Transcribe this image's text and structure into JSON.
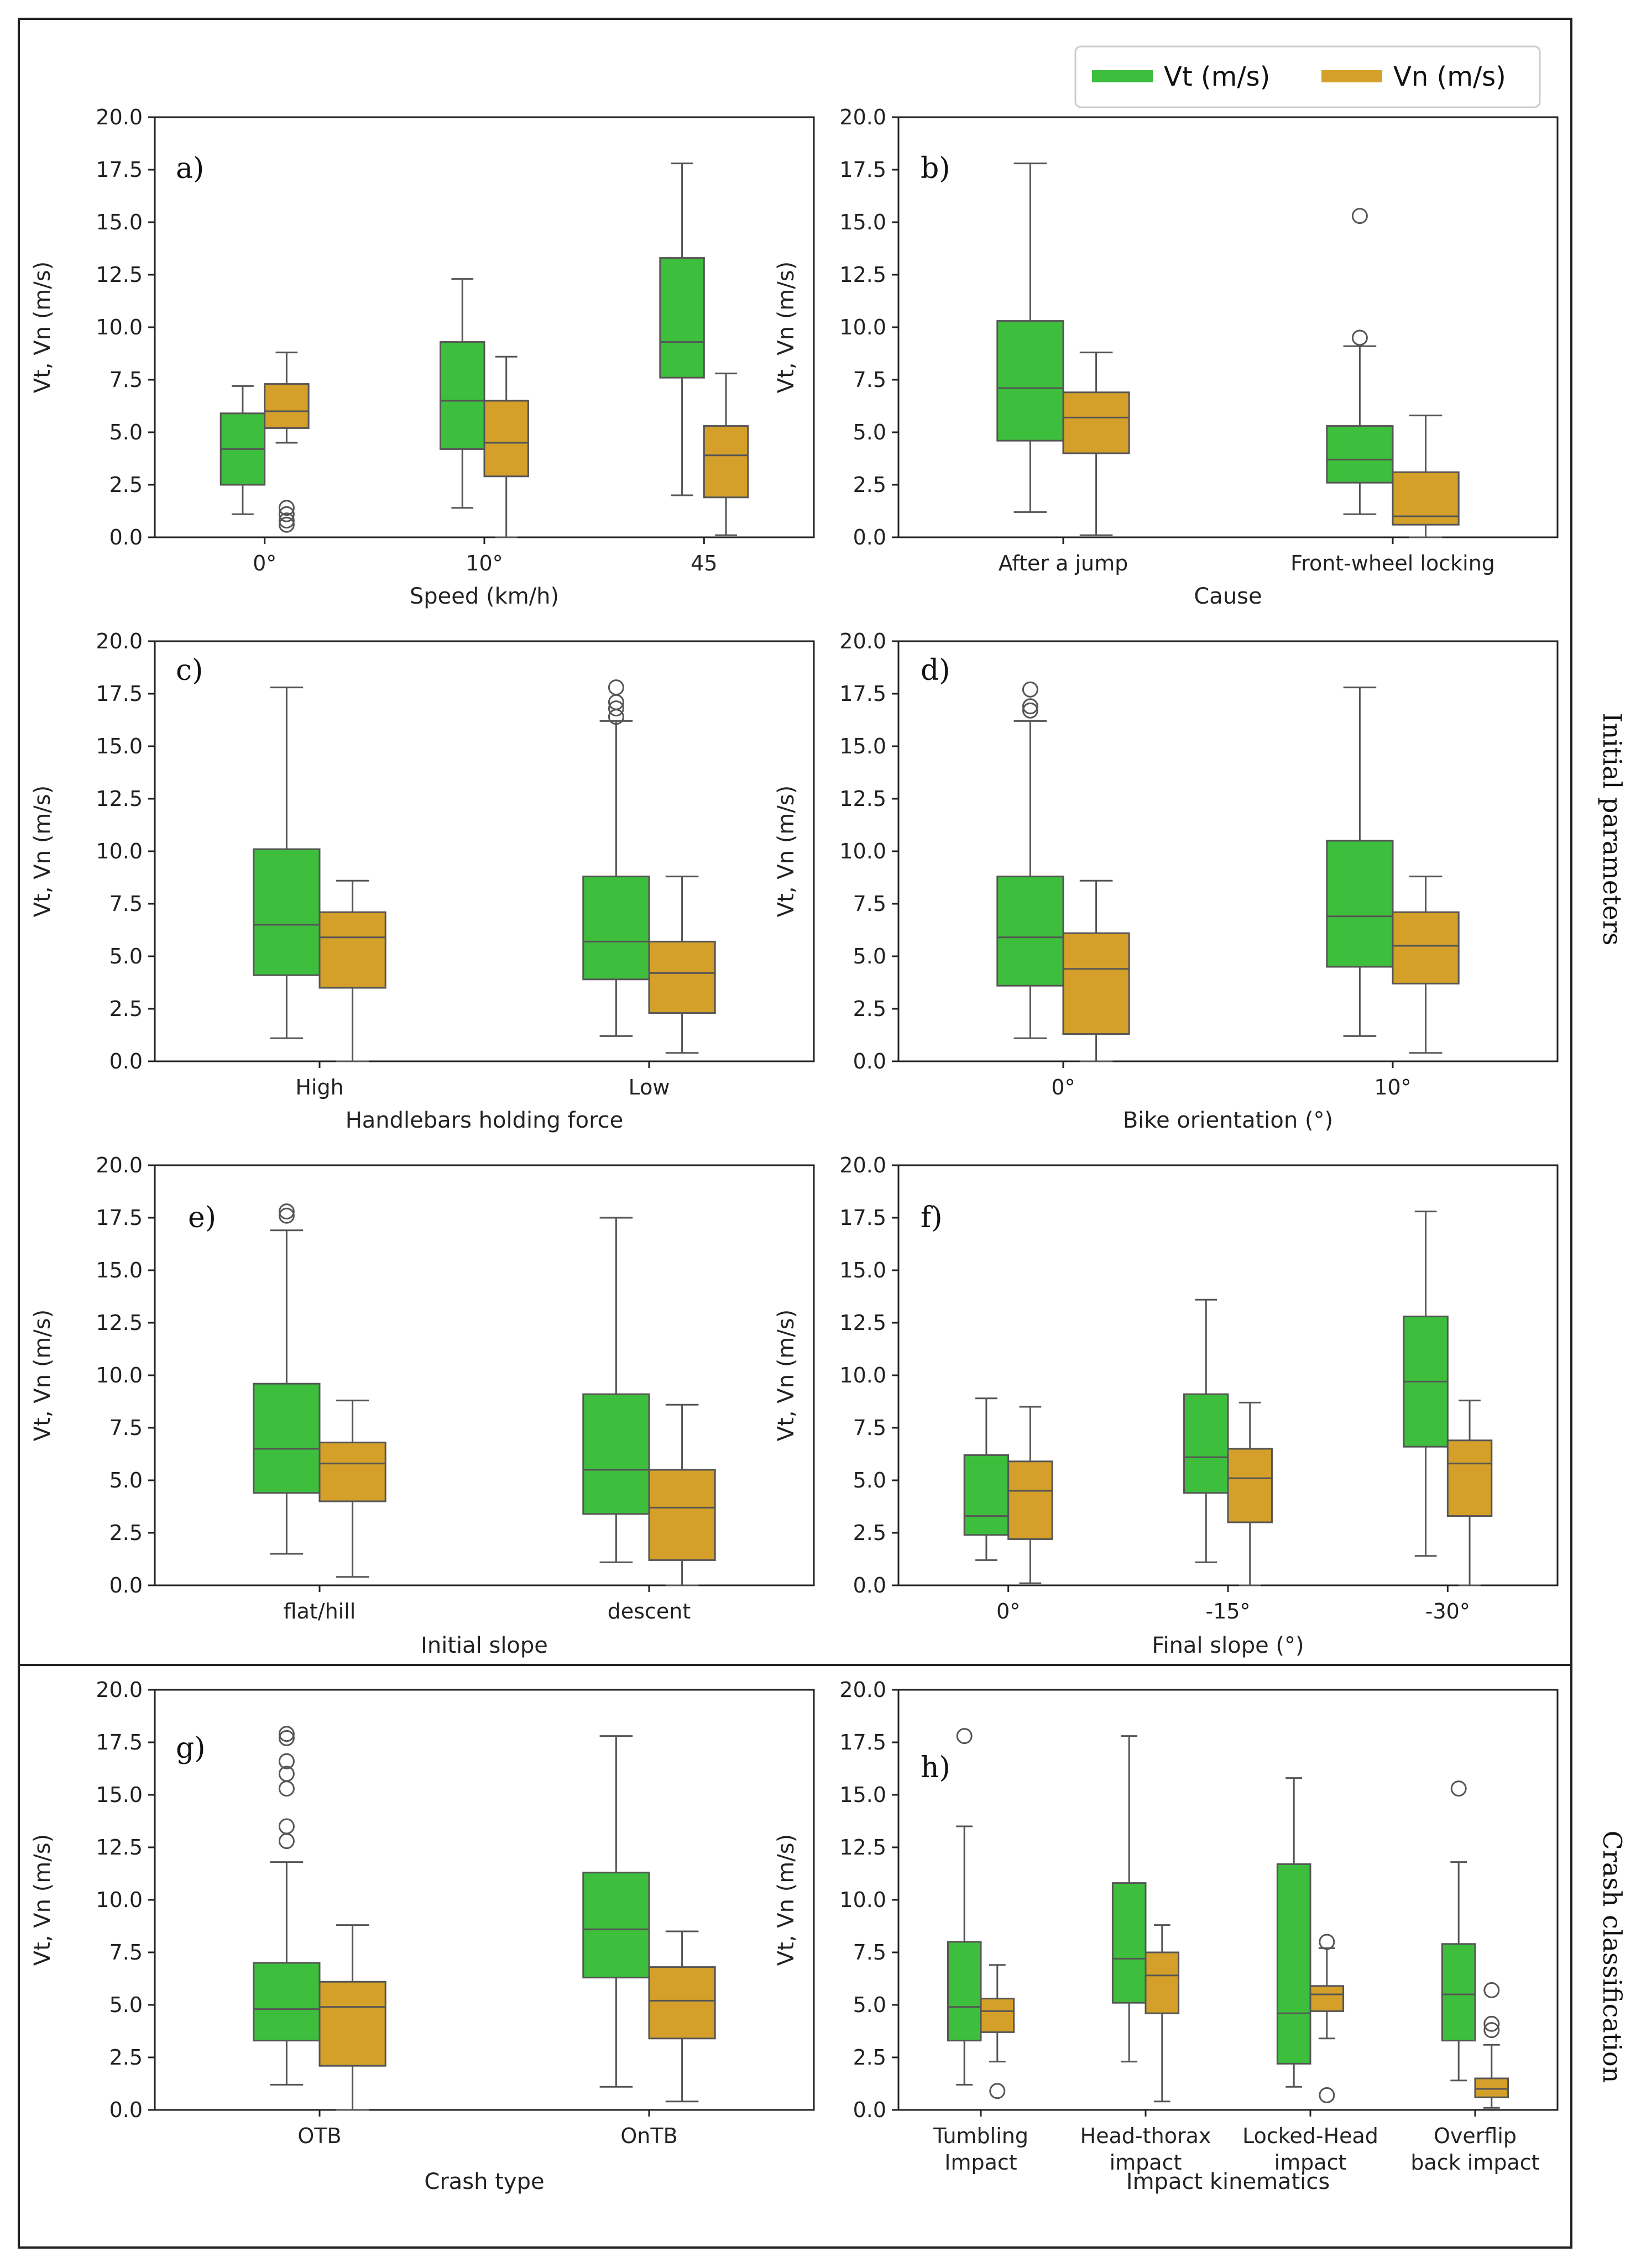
{
  "colors": {
    "vt": "#3dbf3d",
    "vn": "#d4a02a",
    "line": "#555555",
    "frame": "#222222"
  },
  "legend": {
    "vt": "Vt (m/s)",
    "vn": "Vn (m/s)",
    "position": "top-right"
  },
  "sections": {
    "initial": "Initial parameters",
    "crash": "Crash classification"
  },
  "chart_data": [
    {
      "type": "box",
      "panel": "a)",
      "xlabel": "Speed (km/h)",
      "ylabel": "Vt, Vn (m/s)",
      "ylim": [
        0,
        20
      ],
      "yticks": [
        "0.0",
        "2.5",
        "5.0",
        "7.5",
        "10.0",
        "12.5",
        "15.0",
        "17.5",
        "20.0"
      ],
      "categories": [
        "0°",
        "10°",
        "45"
      ],
      "series": [
        {
          "name": "Vt (m/s)",
          "boxes": [
            {
              "wl": 1.1,
              "q1": 2.5,
              "med": 4.2,
              "q3": 5.9,
              "wh": 7.2,
              "out": []
            },
            {
              "wl": 1.4,
              "q1": 4.2,
              "med": 6.5,
              "q3": 9.3,
              "wh": 12.3,
              "out": []
            },
            {
              "wl": 2.0,
              "q1": 7.6,
              "med": 9.3,
              "q3": 13.3,
              "wh": 17.8,
              "out": []
            }
          ]
        },
        {
          "name": "Vn (m/s)",
          "boxes": [
            {
              "wl": 4.5,
              "q1": 5.2,
              "med": 6.0,
              "q3": 7.3,
              "wh": 8.8,
              "out": [
                0.6,
                0.8,
                1.1,
                1.4
              ]
            },
            {
              "wl": 0.0,
              "q1": 2.9,
              "med": 4.5,
              "q3": 6.5,
              "wh": 8.6,
              "out": []
            },
            {
              "wl": 0.1,
              "q1": 1.9,
              "med": 3.9,
              "q3": 5.3,
              "wh": 7.8,
              "out": []
            }
          ]
        }
      ]
    },
    {
      "type": "box",
      "panel": "b)",
      "xlabel": "Cause",
      "ylabel": "Vt, Vn (m/s)",
      "ylim": [
        0,
        20
      ],
      "yticks": [
        "0.0",
        "2.5",
        "5.0",
        "7.5",
        "10.0",
        "12.5",
        "15.0",
        "17.5",
        "20.0"
      ],
      "categories": [
        "After a jump",
        "Front-wheel locking"
      ],
      "series": [
        {
          "name": "Vt (m/s)",
          "boxes": [
            {
              "wl": 1.2,
              "q1": 4.6,
              "med": 7.1,
              "q3": 10.3,
              "wh": 17.8,
              "out": []
            },
            {
              "wl": 1.1,
              "q1": 2.6,
              "med": 3.7,
              "q3": 5.3,
              "wh": 9.1,
              "out": [
                9.5,
                15.3
              ]
            }
          ]
        },
        {
          "name": "Vn (m/s)",
          "boxes": [
            {
              "wl": 0.1,
              "q1": 4.0,
              "med": 5.7,
              "q3": 6.9,
              "wh": 8.8,
              "out": []
            },
            {
              "wl": 0.0,
              "q1": 0.6,
              "med": 1.0,
              "q3": 3.1,
              "wh": 5.8,
              "out": []
            }
          ]
        }
      ]
    },
    {
      "type": "box",
      "panel": "c)",
      "xlabel": "Handlebars holding force",
      "ylabel": "Vt, Vn (m/s)",
      "ylim": [
        0,
        20
      ],
      "yticks": [
        "0.0",
        "2.5",
        "5.0",
        "7.5",
        "10.0",
        "12.5",
        "15.0",
        "17.5",
        "20.0"
      ],
      "categories": [
        "High",
        "Low"
      ],
      "series": [
        {
          "name": "Vt (m/s)",
          "boxes": [
            {
              "wl": 1.1,
              "q1": 4.1,
              "med": 6.5,
              "q3": 10.1,
              "wh": 17.8,
              "out": []
            },
            {
              "wl": 1.2,
              "q1": 3.9,
              "med": 5.7,
              "q3": 8.8,
              "wh": 16.2,
              "out": [
                16.4,
                16.8,
                17.1,
                17.8
              ]
            }
          ]
        },
        {
          "name": "Vn (m/s)",
          "boxes": [
            {
              "wl": 0.0,
              "q1": 3.5,
              "med": 5.9,
              "q3": 7.1,
              "wh": 8.6,
              "out": []
            },
            {
              "wl": 0.4,
              "q1": 2.3,
              "med": 4.2,
              "q3": 5.7,
              "wh": 8.8,
              "out": []
            }
          ]
        }
      ]
    },
    {
      "type": "box",
      "panel": "d)",
      "xlabel": "Bike orientation (°)",
      "ylabel": "Vt, Vn (m/s)",
      "ylim": [
        0,
        20
      ],
      "yticks": [
        "0.0",
        "2.5",
        "5.0",
        "7.5",
        "10.0",
        "12.5",
        "15.0",
        "17.5",
        "20.0"
      ],
      "categories": [
        "0°",
        "10°"
      ],
      "series": [
        {
          "name": "Vt (m/s)",
          "boxes": [
            {
              "wl": 1.1,
              "q1": 3.6,
              "med": 5.9,
              "q3": 8.8,
              "wh": 16.2,
              "out": [
                16.7,
                16.9,
                17.7
              ]
            },
            {
              "wl": 1.2,
              "q1": 4.5,
              "med": 6.9,
              "q3": 10.5,
              "wh": 17.8,
              "out": []
            }
          ]
        },
        {
          "name": "Vn (m/s)",
          "boxes": [
            {
              "wl": 0.0,
              "q1": 1.3,
              "med": 4.4,
              "q3": 6.1,
              "wh": 8.6,
              "out": []
            },
            {
              "wl": 0.4,
              "q1": 3.7,
              "med": 5.5,
              "q3": 7.1,
              "wh": 8.8,
              "out": []
            }
          ]
        }
      ]
    },
    {
      "type": "box",
      "panel": "e)",
      "xlabel": "Initial slope",
      "ylabel": "Vt, Vn (m/s)",
      "ylim": [
        0,
        20
      ],
      "yticks": [
        "0.0",
        "2.5",
        "5.0",
        "7.5",
        "10.0",
        "12.5",
        "15.0",
        "17.5",
        "20.0"
      ],
      "categories": [
        "flat/hill",
        "descent"
      ],
      "series": [
        {
          "name": "Vt (m/s)",
          "boxes": [
            {
              "wl": 1.5,
              "q1": 4.4,
              "med": 6.5,
              "q3": 9.6,
              "wh": 16.9,
              "out": [
                17.6,
                17.8
              ]
            },
            {
              "wl": 1.1,
              "q1": 3.4,
              "med": 5.5,
              "q3": 9.1,
              "wh": 17.5,
              "out": []
            }
          ]
        },
        {
          "name": "Vn (m/s)",
          "boxes": [
            {
              "wl": 0.4,
              "q1": 4.0,
              "med": 5.8,
              "q3": 6.8,
              "wh": 8.8,
              "out": []
            },
            {
              "wl": 0.0,
              "q1": 1.2,
              "med": 3.7,
              "q3": 5.5,
              "wh": 8.6,
              "out": []
            }
          ]
        }
      ]
    },
    {
      "type": "box",
      "panel": "f)",
      "xlabel": "Final slope (°)",
      "ylabel": "Vt, Vn (m/s)",
      "ylim": [
        0,
        20
      ],
      "yticks": [
        "0.0",
        "2.5",
        "5.0",
        "7.5",
        "10.0",
        "12.5",
        "15.0",
        "17.5",
        "20.0"
      ],
      "categories": [
        "0°",
        "-15°",
        "-30°"
      ],
      "series": [
        {
          "name": "Vt (m/s)",
          "boxes": [
            {
              "wl": 1.2,
              "q1": 2.4,
              "med": 3.3,
              "q3": 6.2,
              "wh": 8.9,
              "out": []
            },
            {
              "wl": 1.1,
              "q1": 4.4,
              "med": 6.1,
              "q3": 9.1,
              "wh": 13.6,
              "out": []
            },
            {
              "wl": 1.4,
              "q1": 6.6,
              "med": 9.7,
              "q3": 12.8,
              "wh": 17.8,
              "out": []
            }
          ]
        },
        {
          "name": "Vn (m/s)",
          "boxes": [
            {
              "wl": 0.1,
              "q1": 2.2,
              "med": 4.5,
              "q3": 5.9,
              "wh": 8.5,
              "out": []
            },
            {
              "wl": 0.0,
              "q1": 3.0,
              "med": 5.1,
              "q3": 6.5,
              "wh": 8.7,
              "out": []
            },
            {
              "wl": 0.0,
              "q1": 3.3,
              "med": 5.8,
              "q3": 6.9,
              "wh": 8.8,
              "out": []
            }
          ]
        }
      ]
    },
    {
      "type": "box",
      "panel": "g)",
      "xlabel": "Crash type",
      "ylabel": "Vt, Vn (m/s)",
      "ylim": [
        0,
        20
      ],
      "yticks": [
        "0.0",
        "2.5",
        "5.0",
        "7.5",
        "10.0",
        "12.5",
        "15.0",
        "17.5",
        "20.0"
      ],
      "categories": [
        "OTB",
        "OnTB"
      ],
      "series": [
        {
          "name": "Vt (m/s)",
          "boxes": [
            {
              "wl": 1.2,
              "q1": 3.3,
              "med": 4.8,
              "q3": 7.0,
              "wh": 11.8,
              "out": [
                12.8,
                13.5,
                15.3,
                16.0,
                16.6,
                17.7,
                17.9
              ]
            },
            {
              "wl": 1.1,
              "q1": 6.3,
              "med": 8.6,
              "q3": 11.3,
              "wh": 17.8,
              "out": []
            }
          ]
        },
        {
          "name": "Vn (m/s)",
          "boxes": [
            {
              "wl": 0.0,
              "q1": 2.1,
              "med": 4.9,
              "q3": 6.1,
              "wh": 8.8,
              "out": []
            },
            {
              "wl": 0.4,
              "q1": 3.4,
              "med": 5.2,
              "q3": 6.8,
              "wh": 8.5,
              "out": []
            }
          ]
        }
      ]
    },
    {
      "type": "box",
      "panel": "h)",
      "xlabel": "Impact kinematics",
      "ylabel": "Vt, Vn (m/s)",
      "ylim": [
        0,
        20
      ],
      "yticks": [
        "0.0",
        "2.5",
        "5.0",
        "7.5",
        "10.0",
        "12.5",
        "15.0",
        "17.5",
        "20.0"
      ],
      "categories": [
        "Tumbling\nImpact",
        "Head-thorax\nimpact",
        "Locked-Head\nimpact",
        "Overflip\nback impact"
      ],
      "series": [
        {
          "name": "Vt (m/s)",
          "boxes": [
            {
              "wl": 1.2,
              "q1": 3.3,
              "med": 4.9,
              "q3": 8.0,
              "wh": 13.5,
              "out": [
                17.8
              ]
            },
            {
              "wl": 2.3,
              "q1": 5.1,
              "med": 7.2,
              "q3": 10.8,
              "wh": 17.8,
              "out": []
            },
            {
              "wl": 1.1,
              "q1": 2.2,
              "med": 4.6,
              "q3": 11.7,
              "wh": 15.8,
              "out": []
            },
            {
              "wl": 1.4,
              "q1": 3.3,
              "med": 5.5,
              "q3": 7.9,
              "wh": 11.8,
              "out": [
                15.3
              ]
            }
          ]
        },
        {
          "name": "Vn (m/s)",
          "boxes": [
            {
              "wl": 2.3,
              "q1": 3.7,
              "med": 4.7,
              "q3": 5.3,
              "wh": 6.9,
              "out": [
                0.9
              ]
            },
            {
              "wl": 0.4,
              "q1": 4.6,
              "med": 6.4,
              "q3": 7.5,
              "wh": 8.8,
              "out": []
            },
            {
              "wl": 3.4,
              "q1": 4.7,
              "med": 5.5,
              "q3": 5.9,
              "wh": 7.7,
              "out": [
                0.7,
                8.0
              ]
            },
            {
              "wl": 0.1,
              "q1": 0.6,
              "med": 1.0,
              "q3": 1.5,
              "wh": 3.1,
              "out": [
                3.8,
                4.1,
                5.7
              ]
            }
          ]
        }
      ]
    }
  ]
}
